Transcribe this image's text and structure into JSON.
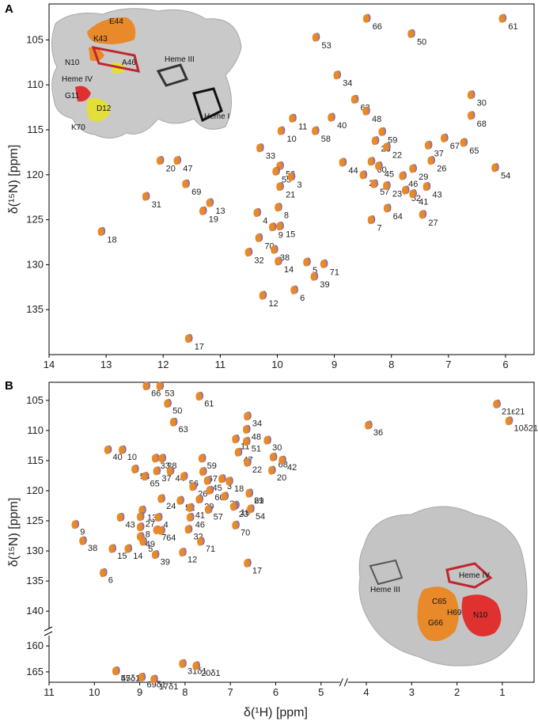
{
  "chart_data": [
    {
      "panel": "A",
      "type": "scatter",
      "xlabel": "",
      "ylabel": "δ(¹⁵N) [ppm]",
      "xlim": [
        14,
        5.5
      ],
      "ylim": [
        140,
        101
      ],
      "xticks": [
        "14",
        "13",
        "12",
        "11",
        "10",
        "9",
        "8",
        "7",
        "6"
      ],
      "xtick_values": [
        14,
        13,
        12,
        11,
        10,
        9,
        8,
        7,
        6
      ],
      "yticks": [
        "105",
        "110",
        "115",
        "120",
        "125",
        "130",
        "135"
      ],
      "ytick_values": [
        105,
        110,
        115,
        120,
        125,
        130,
        135
      ],
      "colors": [
        "#e8892a",
        "#2f8f5a",
        "#7b4fa3",
        "#e25a9a",
        "#3a6fc4"
      ],
      "inset_labels": [
        "E44",
        "K43",
        "N10",
        "A46",
        "Heme III",
        "Heme IV",
        "G11",
        "D12",
        "K70",
        "Heme I"
      ],
      "peaks": [
        {
          "label": "61",
          "x": 6.05,
          "y": 102.6
        },
        {
          "label": "66",
          "x": 8.43,
          "y": 102.6
        },
        {
          "label": "50",
          "x": 7.65,
          "y": 104.3
        },
        {
          "label": "53",
          "x": 9.32,
          "y": 104.7
        },
        {
          "label": "34",
          "x": 8.95,
          "y": 108.9
        },
        {
          "label": "63",
          "x": 8.64,
          "y": 111.6
        },
        {
          "label": "30",
          "x": 6.6,
          "y": 111.1
        },
        {
          "label": "48",
          "x": 8.44,
          "y": 112.9
        },
        {
          "label": "11",
          "x": 9.73,
          "y": 113.7
        },
        {
          "label": "40",
          "x": 9.05,
          "y": 113.6
        },
        {
          "label": "68",
          "x": 6.6,
          "y": 113.4
        },
        {
          "label": "10",
          "x": 9.93,
          "y": 115.1
        },
        {
          "label": "58",
          "x": 9.33,
          "y": 115.1
        },
        {
          "label": "59",
          "x": 8.16,
          "y": 115.2
        },
        {
          "label": "28",
          "x": 8.28,
          "y": 116.2
        },
        {
          "label": "22",
          "x": 8.08,
          "y": 116.9
        },
        {
          "label": "37",
          "x": 7.35,
          "y": 116.7
        },
        {
          "label": "67",
          "x": 7.07,
          "y": 115.9
        },
        {
          "label": "65",
          "x": 6.73,
          "y": 116.4
        },
        {
          "label": "44",
          "x": 8.85,
          "y": 118.6
        },
        {
          "label": "60",
          "x": 8.35,
          "y": 118.5
        },
        {
          "label": "45",
          "x": 8.22,
          "y": 119.0
        },
        {
          "label": "24",
          "x": 8.49,
          "y": 120.0
        },
        {
          "label": "29",
          "x": 7.62,
          "y": 119.3
        },
        {
          "label": "26",
          "x": 7.3,
          "y": 118.4
        },
        {
          "label": "54",
          "x": 6.18,
          "y": 119.2
        },
        {
          "label": "46",
          "x": 7.8,
          "y": 120.1
        },
        {
          "label": "33",
          "x": 10.3,
          "y": 117.0
        },
        {
          "label": "56",
          "x": 9.95,
          "y": 119.0
        },
        {
          "label": "55",
          "x": 10.02,
          "y": 119.6
        },
        {
          "label": "3",
          "x": 9.75,
          "y": 120.2
        },
        {
          "label": "21",
          "x": 9.95,
          "y": 121.3
        },
        {
          "label": "57",
          "x": 8.3,
          "y": 121.0
        },
        {
          "label": "23",
          "x": 8.08,
          "y": 121.2
        },
        {
          "label": "52",
          "x": 7.75,
          "y": 121.7
        },
        {
          "label": "41",
          "x": 7.62,
          "y": 122.1
        },
        {
          "label": "43",
          "x": 7.38,
          "y": 121.3
        },
        {
          "label": "20",
          "x": 12.05,
          "y": 118.4
        },
        {
          "label": "47",
          "x": 11.75,
          "y": 118.4
        },
        {
          "label": "69",
          "x": 11.6,
          "y": 121.0
        },
        {
          "label": "31",
          "x": 12.3,
          "y": 122.4
        },
        {
          "label": "13",
          "x": 11.18,
          "y": 123.1
        },
        {
          "label": "19",
          "x": 11.3,
          "y": 124.0
        },
        {
          "label": "4",
          "x": 10.35,
          "y": 124.2
        },
        {
          "label": "8",
          "x": 9.98,
          "y": 123.6
        },
        {
          "label": "64",
          "x": 8.07,
          "y": 123.7
        },
        {
          "label": "27",
          "x": 7.45,
          "y": 124.4
        },
        {
          "label": "9",
          "x": 10.08,
          "y": 125.8
        },
        {
          "label": "15",
          "x": 9.95,
          "y": 125.7
        },
        {
          "label": "7",
          "x": 8.35,
          "y": 125.0
        },
        {
          "label": "18",
          "x": 13.08,
          "y": 126.3
        },
        {
          "label": "70",
          "x": 10.32,
          "y": 127.0
        },
        {
          "label": "32",
          "x": 10.5,
          "y": 128.6
        },
        {
          "label": "38",
          "x": 10.05,
          "y": 128.3
        },
        {
          "label": "14",
          "x": 9.98,
          "y": 129.6
        },
        {
          "label": "5",
          "x": 9.48,
          "y": 129.7
        },
        {
          "label": "71",
          "x": 9.18,
          "y": 129.9
        },
        {
          "label": "39",
          "x": 9.35,
          "y": 131.3
        },
        {
          "label": "6",
          "x": 9.7,
          "y": 132.8
        },
        {
          "label": "12",
          "x": 10.25,
          "y": 133.4
        },
        {
          "label": "17",
          "x": 11.55,
          "y": 138.2
        }
      ]
    },
    {
      "panel": "B",
      "type": "scatter",
      "xlabel": "δ(¹H) [ppm]",
      "ylabel": "δ(¹⁵N) [ppm]",
      "xlim": [
        11,
        0.3
      ],
      "ylim_upper": [
        102,
        143
      ],
      "ylim_lower": [
        158,
        167
      ],
      "xticks": [
        "11",
        "10",
        "9",
        "8",
        "7",
        "6",
        "5",
        "4",
        "3",
        "2",
        "1"
      ],
      "xtick_values": [
        11,
        10,
        9,
        8,
        7,
        6,
        5,
        4,
        3,
        2,
        1
      ],
      "yticks": [
        "105",
        "110",
        "115",
        "120",
        "125",
        "130",
        "135",
        "140",
        "160",
        "165"
      ],
      "ytick_values": [
        105,
        110,
        115,
        120,
        125,
        130,
        135,
        140,
        160,
        165
      ],
      "colors": [
        "#e8892a",
        "#2f8f5a",
        "#7b4fa3",
        "#e25a9a",
        "#3a6fc4"
      ],
      "inset_labels": [
        "Heme III",
        "Heme IV",
        "C65",
        "H69",
        "N10",
        "G66"
      ],
      "peaks": [
        {
          "label": "66",
          "x": 8.85,
          "y": 102.6
        },
        {
          "label": "53",
          "x": 8.55,
          "y": 102.6
        },
        {
          "label": "50",
          "x": 8.38,
          "y": 105.5
        },
        {
          "label": "61",
          "x": 7.68,
          "y": 104.3
        },
        {
          "label": "34",
          "x": 6.62,
          "y": 107.6
        },
        {
          "label": "48",
          "x": 6.64,
          "y": 109.8
        },
        {
          "label": "11",
          "x": 6.88,
          "y": 111.4
        },
        {
          "label": "51",
          "x": 6.64,
          "y": 111.8
        },
        {
          "label": "30",
          "x": 6.18,
          "y": 111.6
        },
        {
          "label": "63",
          "x": 8.25,
          "y": 108.6
        },
        {
          "label": "36",
          "x": 3.95,
          "y": 109.1
        },
        {
          "label": "21ε21",
          "x": 1.12,
          "y": 105.6
        },
        {
          "label": "10δ21",
          "x": 0.85,
          "y": 108.4
        },
        {
          "label": "40",
          "x": 9.7,
          "y": 113.2
        },
        {
          "label": "10",
          "x": 9.38,
          "y": 113.2
        },
        {
          "label": "33",
          "x": 8.65,
          "y": 114.6
        },
        {
          "label": "28",
          "x": 8.5,
          "y": 114.6
        },
        {
          "label": "59",
          "x": 7.62,
          "y": 114.6
        },
        {
          "label": "47",
          "x": 6.82,
          "y": 113.6
        },
        {
          "label": "22",
          "x": 6.62,
          "y": 115.3
        },
        {
          "label": "68",
          "x": 6.05,
          "y": 114.4
        },
        {
          "label": "42",
          "x": 5.85,
          "y": 114.9
        },
        {
          "label": "58",
          "x": 9.1,
          "y": 116.4
        },
        {
          "label": "37",
          "x": 8.62,
          "y": 116.7
        },
        {
          "label": "44",
          "x": 8.32,
          "y": 116.7
        },
        {
          "label": "67",
          "x": 7.6,
          "y": 116.8
        },
        {
          "label": "65",
          "x": 8.88,
          "y": 117.6
        },
        {
          "label": "56",
          "x": 8.02,
          "y": 117.6
        },
        {
          "label": "45",
          "x": 7.5,
          "y": 118.3
        },
        {
          "label": "3",
          "x": 7.18,
          "y": 118.0
        },
        {
          "label": "18",
          "x": 7.02,
          "y": 118.4
        },
        {
          "label": "20",
          "x": 6.08,
          "y": 116.6
        },
        {
          "label": "26",
          "x": 7.82,
          "y": 119.3
        },
        {
          "label": "60",
          "x": 7.45,
          "y": 119.9
        },
        {
          "label": "21",
          "x": 6.58,
          "y": 120.4
        },
        {
          "label": "69",
          "x": 6.58,
          "y": 120.4
        },
        {
          "label": "24",
          "x": 8.52,
          "y": 121.3
        },
        {
          "label": "52",
          "x": 8.1,
          "y": 121.6
        },
        {
          "label": "29",
          "x": 7.68,
          "y": 121.4
        },
        {
          "label": "31",
          "x": 7.12,
          "y": 120.9
        },
        {
          "label": "13",
          "x": 8.94,
          "y": 123.2
        },
        {
          "label": "41",
          "x": 7.88,
          "y": 122.8
        },
        {
          "label": "57",
          "x": 7.48,
          "y": 123.1
        },
        {
          "label": "19",
          "x": 6.88,
          "y": 122.4
        },
        {
          "label": "23",
          "x": 6.92,
          "y": 122.6
        },
        {
          "label": "54",
          "x": 6.55,
          "y": 123.0
        },
        {
          "label": "43",
          "x": 9.42,
          "y": 124.4
        },
        {
          "label": "27",
          "x": 8.98,
          "y": 124.3
        },
        {
          "label": "4",
          "x": 8.58,
          "y": 124.4
        },
        {
          "label": "46",
          "x": 7.88,
          "y": 124.4
        },
        {
          "label": "8",
          "x": 8.98,
          "y": 126.0
        },
        {
          "label": "7",
          "x": 8.62,
          "y": 126.5
        },
        {
          "label": "64",
          "x": 8.52,
          "y": 126.6
        },
        {
          "label": "49",
          "x": 8.98,
          "y": 127.6
        },
        {
          "label": "32",
          "x": 7.92,
          "y": 126.4
        },
        {
          "label": "70",
          "x": 6.88,
          "y": 125.7
        },
        {
          "label": "9",
          "x": 10.42,
          "y": 125.6
        },
        {
          "label": "38",
          "x": 10.25,
          "y": 128.3
        },
        {
          "label": "5",
          "x": 8.92,
          "y": 128.4
        },
        {
          "label": "71",
          "x": 7.65,
          "y": 128.4
        },
        {
          "label": "15",
          "x": 9.6,
          "y": 129.6
        },
        {
          "label": "14",
          "x": 9.25,
          "y": 129.6
        },
        {
          "label": "39",
          "x": 8.65,
          "y": 130.6
        },
        {
          "label": "12",
          "x": 8.05,
          "y": 130.2
        },
        {
          "label": "17",
          "x": 6.62,
          "y": 132.0
        },
        {
          "label": "6",
          "x": 9.8,
          "y": 133.6
        },
        {
          "label": "47δ1",
          "x": 9.52,
          "y": 164.8
        },
        {
          "label": "55δ1",
          "x": 9.52,
          "y": 164.8
        },
        {
          "label": "69δ1",
          "x": 8.95,
          "y": 166.0
        },
        {
          "label": "31δ1",
          "x": 8.05,
          "y": 163.4
        },
        {
          "label": "20δ1",
          "x": 7.75,
          "y": 163.8
        },
        {
          "label": "17δ1",
          "x": 8.68,
          "y": 166.4
        }
      ]
    }
  ],
  "panel_labels": {
    "a": "A",
    "b": "B"
  }
}
